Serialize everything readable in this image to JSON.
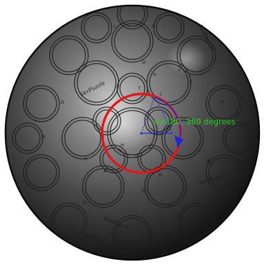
{
  "puzzle": {
    "watermark": "VerPuzzle",
    "circle_letters": [
      "D",
      "H",
      "T",
      "L",
      "H",
      "D",
      "H",
      "A"
    ]
  },
  "rotation_indicator": {
    "symbol": "α",
    "text": "=180, 360 degrees",
    "text_color": "#22d41e",
    "ring_color": "#e8141a",
    "arrow_color": "#1a2bd6"
  }
}
